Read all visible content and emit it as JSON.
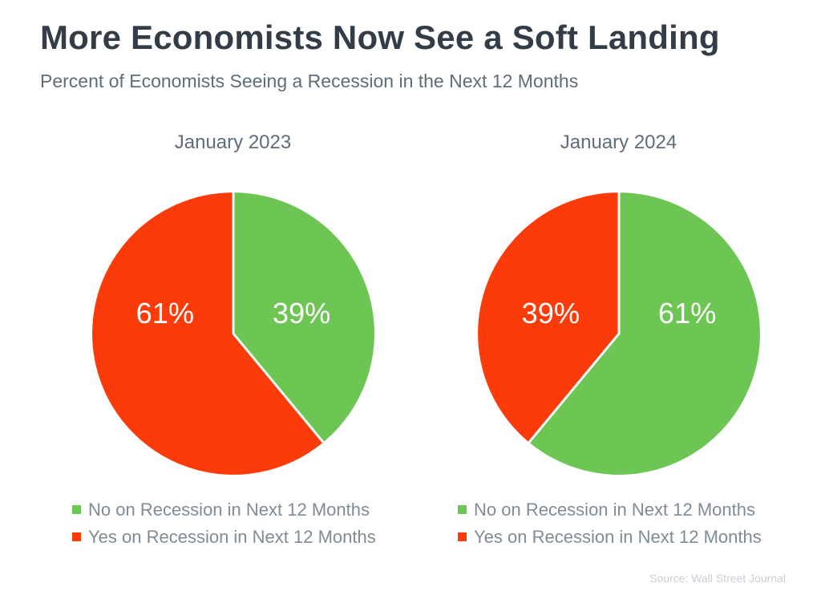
{
  "header": {
    "title": "More Economists Now See a Soft Landing",
    "subtitle": "Percent of Economists Seeing a Recession in the Next 12 Months"
  },
  "footer": {
    "source": "Source: Wall Street Journal"
  },
  "colors": {
    "no_recession_green": "#6dc553",
    "yes_recession_red": "#fb3c0a",
    "title_text": "#333d47",
    "subtitle_text": "#5e6d79",
    "legend_text": "#7e8c99",
    "source_text": "#c9ced4",
    "slice_label_text": "#ffffff"
  },
  "chart_data": [
    {
      "type": "pie",
      "title": "January 2023",
      "labels": [
        "No on Recession in Next 12 Months",
        "Yes on Recession in Next 12 Months"
      ],
      "values": [
        39,
        61
      ],
      "data_labels": [
        "39%",
        "61%"
      ],
      "colors": [
        "#6dc553",
        "#fb3c0a"
      ],
      "unit": "percent",
      "start_angle_deg": 0,
      "direction": "clockwise",
      "legend_position": "bottom"
    },
    {
      "type": "pie",
      "title": "January 2024",
      "labels": [
        "No on Recession in Next 12 Months",
        "Yes on Recession in Next 12 Months"
      ],
      "values": [
        61,
        39
      ],
      "data_labels": [
        "61%",
        "39%"
      ],
      "colors": [
        "#6dc553",
        "#fb3c0a"
      ],
      "unit": "percent",
      "start_angle_deg": 0,
      "direction": "clockwise",
      "legend_position": "bottom"
    }
  ]
}
